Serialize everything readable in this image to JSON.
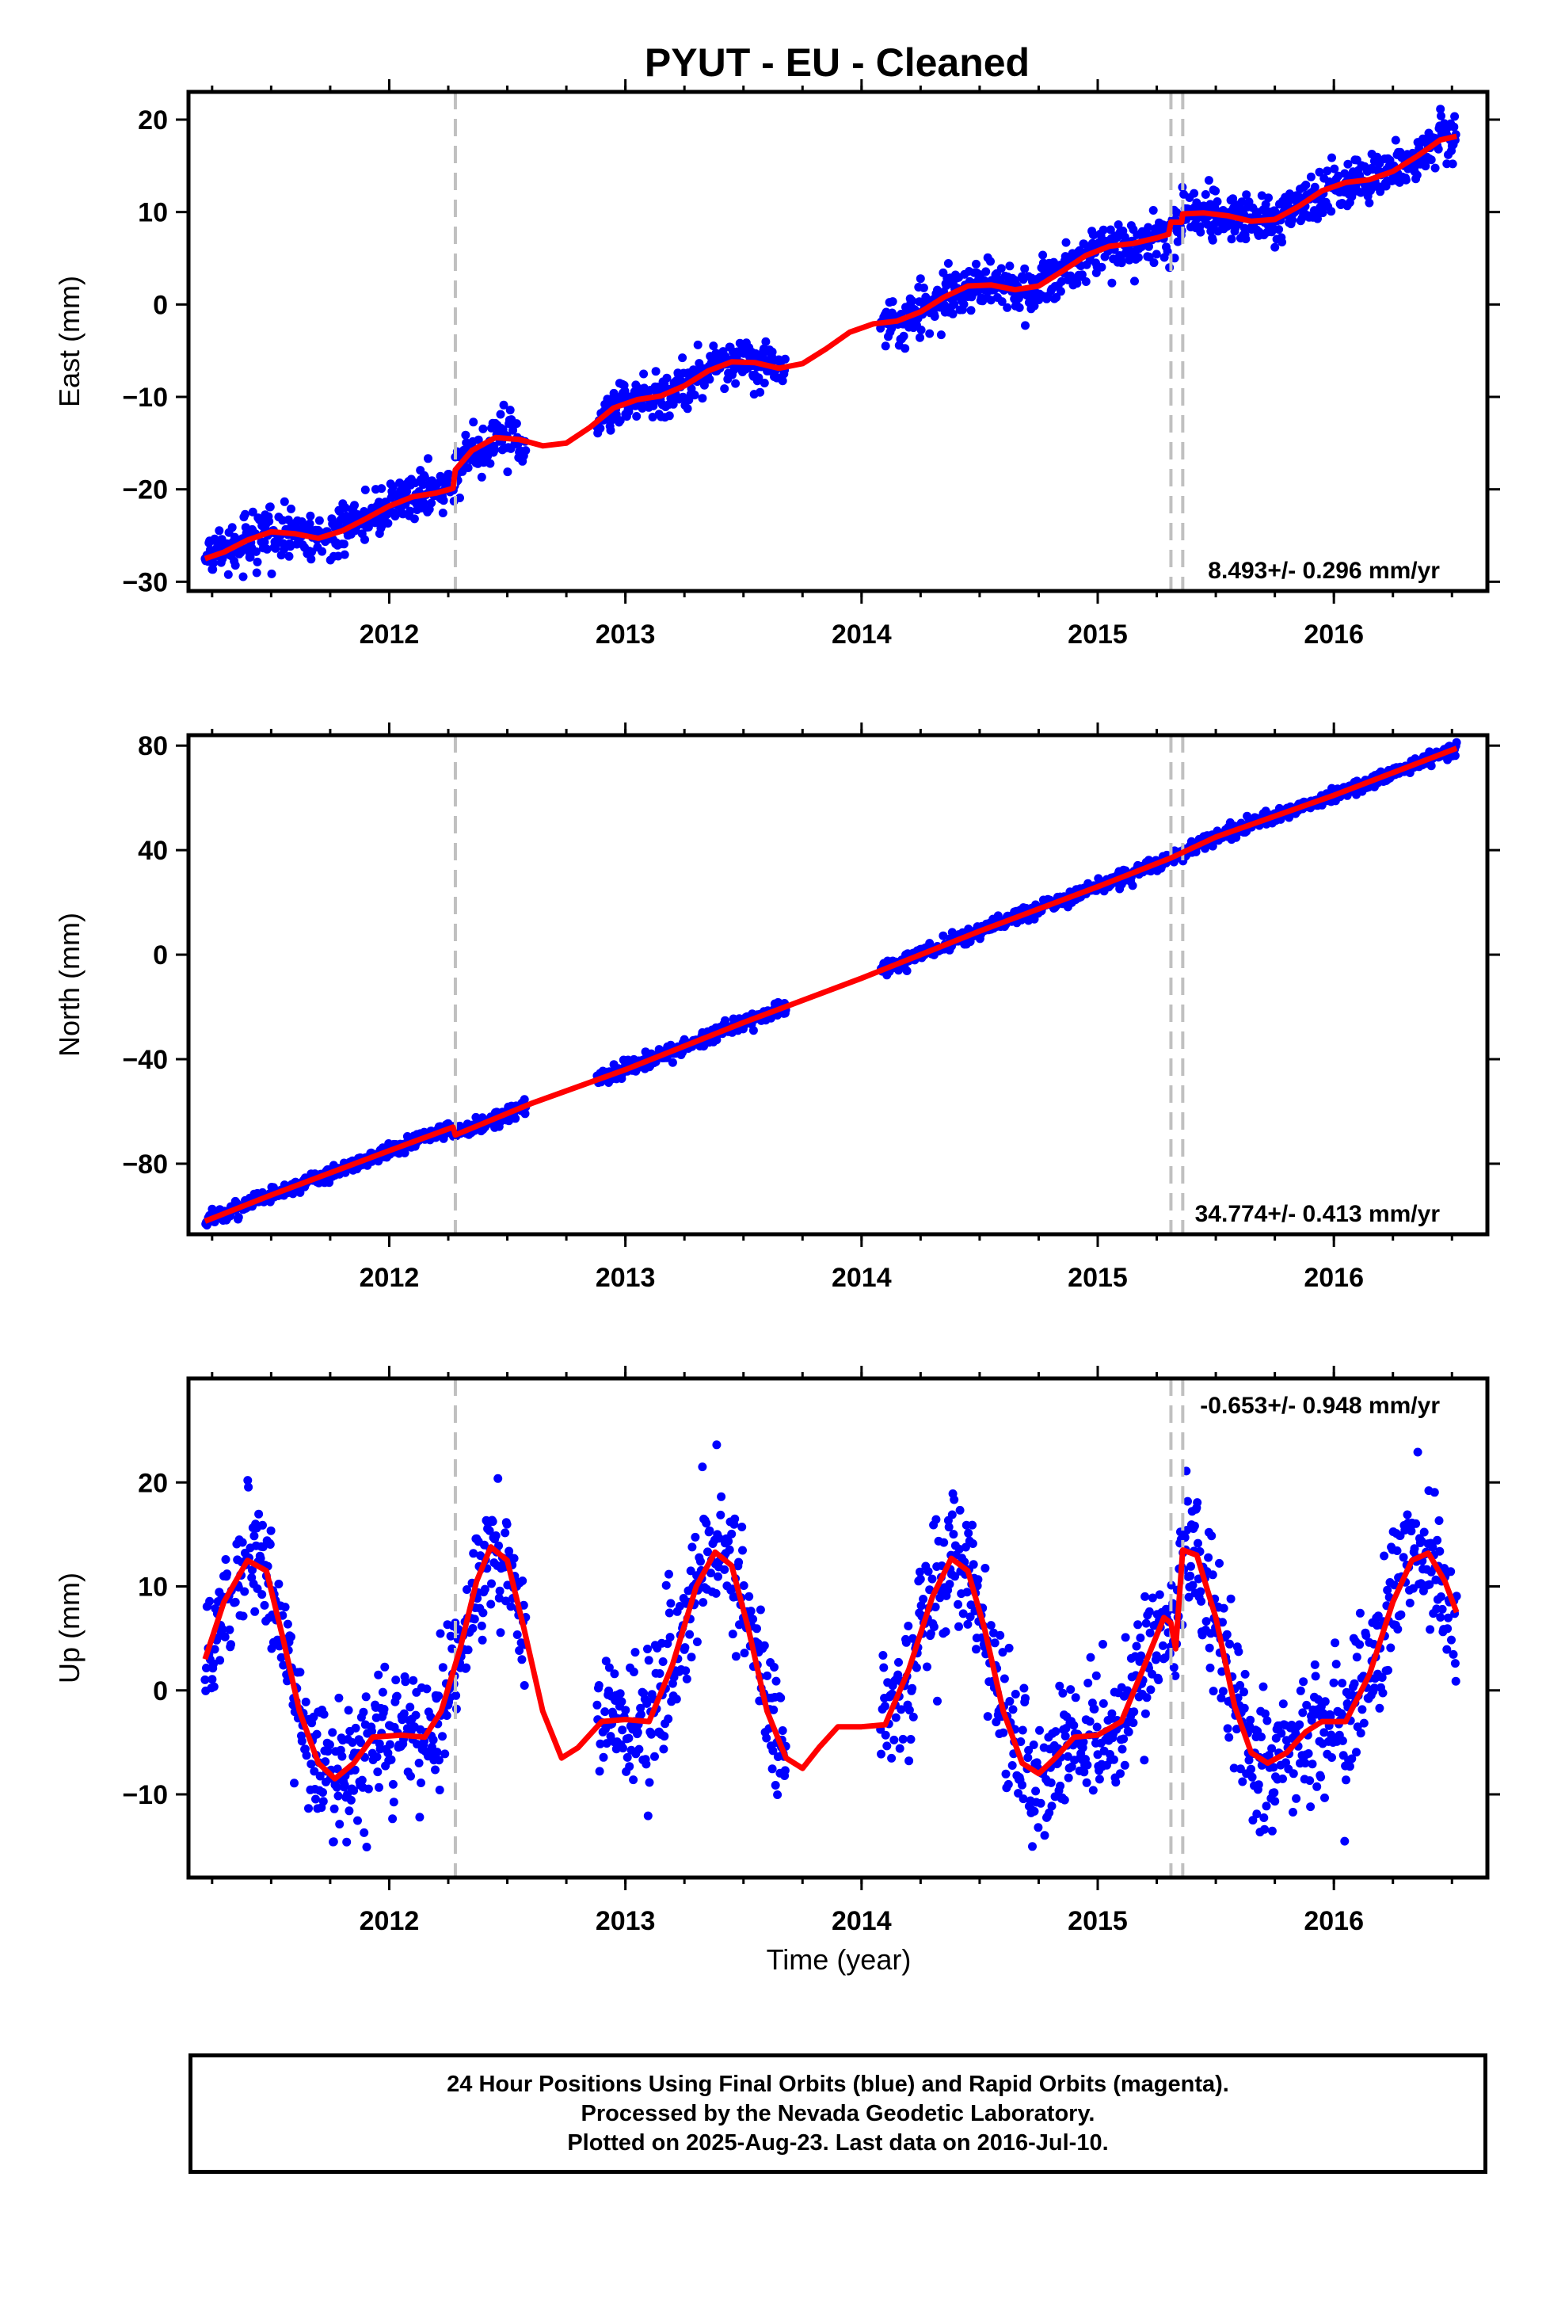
{
  "title": "PYUT  - EU - Cleaned",
  "caption": {
    "line1": "24 Hour Positions Using Final Orbits (blue) and Rapid Orbits (magenta).",
    "line2": "Processed by the Nevada Geodetic Laboratory.",
    "line3": "Plotted on 2025-Aug-23. Last data on 2016-Jul-10."
  },
  "colors": {
    "points": "#0000ff",
    "model": "#ff0000",
    "breaks": "#c0c0c0",
    "frame": "#000000"
  },
  "chart_data": [
    {
      "type": "scatter",
      "component": "east",
      "ylabel": "East (mm)",
      "xlabel": "",
      "xlim": [
        2011.15,
        2016.65
      ],
      "ylim": [
        -31,
        23
      ],
      "xticks": [
        2012,
        2013,
        2014,
        2015,
        2016
      ],
      "yticks": [
        -30,
        -20,
        -10,
        0,
        10,
        20
      ],
      "yticklabels": [
        "−30",
        "−20",
        "−10",
        "0",
        "10",
        "20"
      ],
      "rate_text": "8.493+/- 0.296 mm/yr",
      "rate_position": "bottom-right",
      "breaks": [
        2012.28,
        2015.31,
        2015.36
      ],
      "data_segments": [
        [
          2011.22,
          2012.58
        ],
        [
          2012.88,
          2013.68
        ],
        [
          2014.08,
          2016.52
        ]
      ],
      "rate": 8.493,
      "scatter_sd": 1.3,
      "model": [
        [
          2011.22,
          -27.5
        ],
        [
          2011.3,
          -26.8
        ],
        [
          2011.4,
          -25.5
        ],
        [
          2011.5,
          -24.6
        ],
        [
          2011.6,
          -24.8
        ],
        [
          2011.7,
          -25.3
        ],
        [
          2011.8,
          -24.5
        ],
        [
          2011.9,
          -23.2
        ],
        [
          2012.0,
          -21.8
        ],
        [
          2012.1,
          -20.8
        ],
        [
          2012.2,
          -20.4
        ],
        [
          2012.27,
          -19.9
        ],
        [
          2012.28,
          -17.9
        ],
        [
          2012.35,
          -15.8
        ],
        [
          2012.45,
          -14.4
        ],
        [
          2012.55,
          -14.6
        ],
        [
          2012.65,
          -15.3
        ],
        [
          2012.75,
          -15.0
        ],
        [
          2012.85,
          -13.3
        ],
        [
          2012.95,
          -11.2
        ],
        [
          2013.05,
          -10.3
        ],
        [
          2013.15,
          -9.9
        ],
        [
          2013.25,
          -8.8
        ],
        [
          2013.35,
          -7.2
        ],
        [
          2013.45,
          -6.2
        ],
        [
          2013.55,
          -6.3
        ],
        [
          2013.65,
          -6.9
        ],
        [
          2013.75,
          -6.4
        ],
        [
          2013.85,
          -4.8
        ],
        [
          2013.95,
          -3.0
        ],
        [
          2014.05,
          -2.1
        ],
        [
          2014.15,
          -1.8
        ],
        [
          2014.25,
          -0.8
        ],
        [
          2014.35,
          0.8
        ],
        [
          2014.45,
          2.0
        ],
        [
          2014.55,
          2.1
        ],
        [
          2014.65,
          1.6
        ],
        [
          2014.75,
          2.0
        ],
        [
          2014.85,
          3.6
        ],
        [
          2014.95,
          5.3
        ],
        [
          2015.05,
          6.3
        ],
        [
          2015.15,
          6.6
        ],
        [
          2015.25,
          7.2
        ],
        [
          2015.3,
          7.6
        ],
        [
          2015.31,
          8.9
        ],
        [
          2015.355,
          8.9
        ],
        [
          2015.36,
          9.8
        ],
        [
          2015.45,
          9.9
        ],
        [
          2015.55,
          9.6
        ],
        [
          2015.65,
          9.0
        ],
        [
          2015.75,
          9.2
        ],
        [
          2015.85,
          10.6
        ],
        [
          2015.95,
          12.3
        ],
        [
          2016.05,
          13.2
        ],
        [
          2016.15,
          13.5
        ],
        [
          2016.25,
          14.4
        ],
        [
          2016.35,
          16.0
        ],
        [
          2016.45,
          17.8
        ],
        [
          2016.52,
          18.2
        ]
      ]
    },
    {
      "type": "scatter",
      "component": "north",
      "ylabel": "North (mm)",
      "xlabel": "",
      "xlim": [
        2011.15,
        2016.65
      ],
      "ylim": [
        -107,
        84
      ],
      "xticks": [
        2012,
        2013,
        2014,
        2015,
        2016
      ],
      "yticks": [
        -80,
        -40,
        0,
        40,
        80
      ],
      "yticklabels": [
        "−80",
        "−40",
        "0",
        "40",
        "80"
      ],
      "rate_text": "34.774+/- 0.413 mm/yr",
      "rate_position": "bottom-right",
      "breaks": [
        2012.28,
        2015.31,
        2015.36
      ],
      "data_segments": [
        [
          2011.22,
          2012.58
        ],
        [
          2012.88,
          2013.68
        ],
        [
          2014.08,
          2016.52
        ]
      ],
      "rate": 34.774,
      "scatter_sd": 1.4,
      "model": [
        [
          2011.22,
          -102.0
        ],
        [
          2011.5,
          -92.0
        ],
        [
          2012.0,
          -75.0
        ],
        [
          2012.27,
          -66.0
        ],
        [
          2012.28,
          -69.0
        ],
        [
          2012.6,
          -57.0
        ],
        [
          2013.0,
          -44.0
        ],
        [
          2013.5,
          -26.0
        ],
        [
          2014.0,
          -9.0
        ],
        [
          2014.5,
          9.0
        ],
        [
          2015.0,
          26.0
        ],
        [
          2015.31,
          37.0
        ],
        [
          2015.5,
          45.0
        ],
        [
          2016.0,
          61.0
        ],
        [
          2016.52,
          79.0
        ]
      ]
    },
    {
      "type": "scatter",
      "component": "up",
      "ylabel": "Up (mm)",
      "xlabel": "Time (year)",
      "xlim": [
        2011.15,
        2016.65
      ],
      "ylim": [
        -18,
        30
      ],
      "xticks": [
        2012,
        2013,
        2014,
        2015,
        2016
      ],
      "yticks": [
        -10,
        0,
        10,
        20
      ],
      "yticklabels": [
        "−10",
        "0",
        "10",
        "20"
      ],
      "rate_text": "-0.653+/- 0.948 mm/yr",
      "rate_position": "top-right",
      "breaks": [
        2012.28,
        2015.31,
        2015.36
      ],
      "data_segments": [
        [
          2011.22,
          2012.58
        ],
        [
          2012.88,
          2013.68
        ],
        [
          2014.08,
          2016.52
        ]
      ],
      "rate": -0.653,
      "scatter_sd": 3.2,
      "model": [
        [
          2011.22,
          3.0
        ],
        [
          2011.3,
          8.5
        ],
        [
          2011.4,
          12.5
        ],
        [
          2011.48,
          11.5
        ],
        [
          2011.55,
          5.0
        ],
        [
          2011.62,
          -2.0
        ],
        [
          2011.7,
          -7.0
        ],
        [
          2011.77,
          -8.5
        ],
        [
          2011.85,
          -7.0
        ],
        [
          2011.93,
          -4.5
        ],
        [
          2012.05,
          -4.3
        ],
        [
          2012.15,
          -4.5
        ],
        [
          2012.22,
          -2.0
        ],
        [
          2012.3,
          4.0
        ],
        [
          2012.37,
          10.5
        ],
        [
          2012.43,
          13.8
        ],
        [
          2012.5,
          12.5
        ],
        [
          2012.57,
          6.0
        ],
        [
          2012.65,
          -2.0
        ],
        [
          2012.73,
          -6.5
        ],
        [
          2012.8,
          -5.5
        ],
        [
          2012.9,
          -3.0
        ],
        [
          2013.0,
          -2.8
        ],
        [
          2013.1,
          -3.0
        ],
        [
          2013.2,
          2.5
        ],
        [
          2013.3,
          10.0
        ],
        [
          2013.38,
          13.3
        ],
        [
          2013.45,
          12.0
        ],
        [
          2013.52,
          6.0
        ],
        [
          2013.6,
          -2.0
        ],
        [
          2013.68,
          -6.5
        ],
        [
          2013.75,
          -7.5
        ],
        [
          2013.82,
          -5.5
        ],
        [
          2013.9,
          -3.5
        ],
        [
          2014.0,
          -3.5
        ],
        [
          2014.1,
          -3.3
        ],
        [
          2014.2,
          2.0
        ],
        [
          2014.3,
          9.0
        ],
        [
          2014.38,
          12.7
        ],
        [
          2014.45,
          11.5
        ],
        [
          2014.52,
          6.0
        ],
        [
          2014.6,
          -2.0
        ],
        [
          2014.68,
          -7.0
        ],
        [
          2014.75,
          -8.0
        ],
        [
          2014.82,
          -6.5
        ],
        [
          2014.9,
          -4.5
        ],
        [
          2015.0,
          -4.3
        ],
        [
          2015.1,
          -3.0
        ],
        [
          2015.2,
          2.5
        ],
        [
          2015.28,
          7.0
        ],
        [
          2015.31,
          6.5
        ],
        [
          2015.33,
          4.0
        ],
        [
          2015.36,
          13.5
        ],
        [
          2015.42,
          13.0
        ],
        [
          2015.5,
          7.0
        ],
        [
          2015.58,
          -1.5
        ],
        [
          2015.65,
          -6.0
        ],
        [
          2015.72,
          -7.0
        ],
        [
          2015.8,
          -6.0
        ],
        [
          2015.88,
          -4.0
        ],
        [
          2015.95,
          -3.0
        ],
        [
          2016.05,
          -3.0
        ],
        [
          2016.15,
          1.5
        ],
        [
          2016.25,
          8.5
        ],
        [
          2016.33,
          12.5
        ],
        [
          2016.4,
          13.2
        ],
        [
          2016.47,
          10.5
        ],
        [
          2016.52,
          7.5
        ]
      ]
    }
  ]
}
